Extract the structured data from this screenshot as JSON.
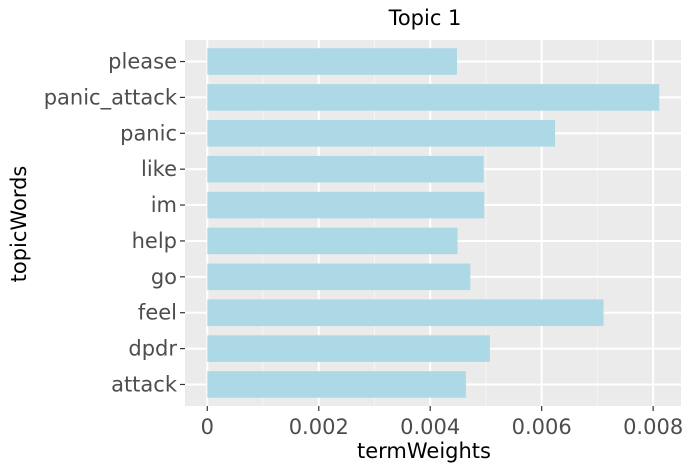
{
  "chart_data": {
    "type": "bar",
    "orientation": "horizontal",
    "title": "Topic 1",
    "xlabel": "termWeights",
    "ylabel": "topicWords",
    "categories": [
      "please",
      "panic_attack",
      "panic",
      "like",
      "im",
      "help",
      "go",
      "feel",
      "dpdr",
      "attack"
    ],
    "values": [
      0.00448,
      0.00811,
      0.00624,
      0.00496,
      0.00497,
      0.00449,
      0.00472,
      0.00711,
      0.00507,
      0.00464
    ],
    "xticks": [
      "0",
      "0.002",
      "0.004",
      "0.006",
      "0.008"
    ],
    "xtick_values": [
      0,
      0.002,
      0.004,
      0.006,
      0.008
    ],
    "xlim": [
      -0.0004,
      0.0085
    ],
    "grid": true,
    "colors": {
      "bar": "#add8e6",
      "panel": "#ebebeb",
      "grid_major": "#ffffff",
      "grid_minor": "#f5f5f5",
      "tick_text": "#4d4d4d"
    }
  }
}
